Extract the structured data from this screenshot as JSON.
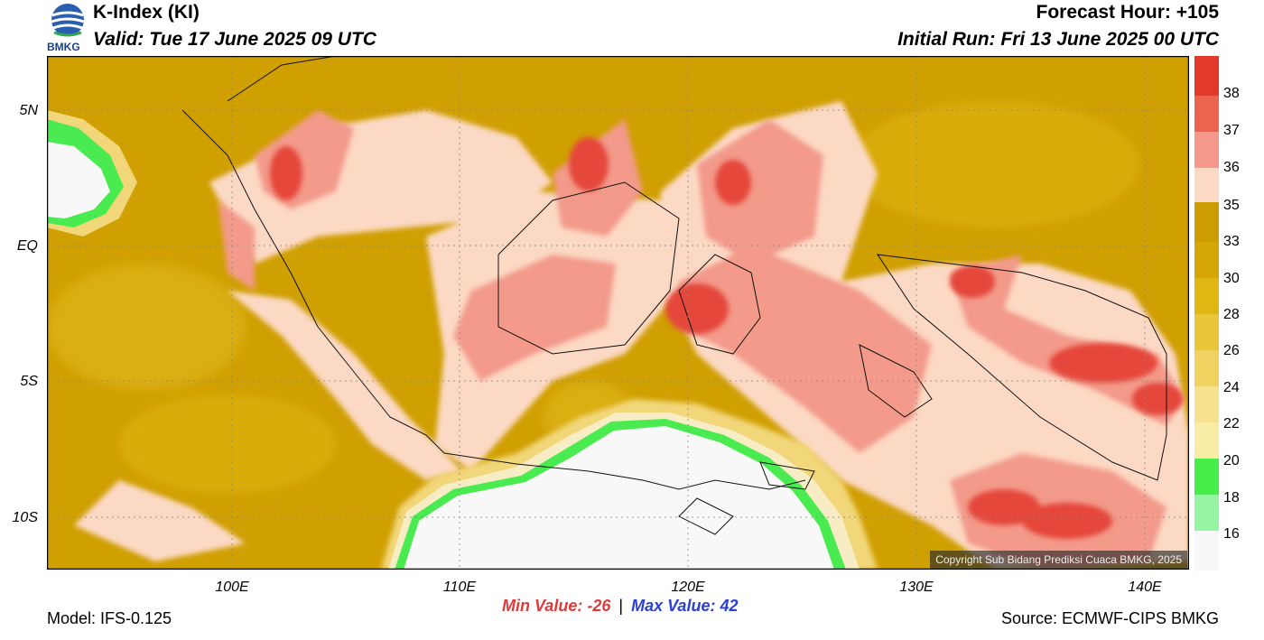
{
  "header": {
    "title": "K-Index (KI)",
    "valid": "Valid: Tue 17 June 2025 09 UTC",
    "forecast_hour": "Forecast Hour: +105",
    "initial_run": "Initial Run: Fri 13 June 2025 00 UTC",
    "logo_text": "BMKG"
  },
  "axes": {
    "lat_labels": [
      "5N",
      "EQ",
      "5S",
      "10S"
    ],
    "lon_labels": [
      "100E",
      "110E",
      "120E",
      "130E",
      "140E"
    ]
  },
  "colorbar": {
    "labels": [
      "38",
      "37",
      "36",
      "35",
      "33",
      "30",
      "28",
      "26",
      "24",
      "22",
      "20",
      "18",
      "16"
    ],
    "colors": [
      "#e3392a",
      "#ec6450",
      "#f5978a",
      "#fcd9c4",
      "#cc9c00",
      "#d6a506",
      "#e0b612",
      "#e8c637",
      "#efd25f",
      "#f6e18e",
      "#f9eda6",
      "#47ed4b",
      "#95f5a2",
      "#f8f8f8"
    ]
  },
  "map": {
    "copyright": "Copyright Sub Bidang Prediksi Cuaca BMKG, 2025"
  },
  "footer": {
    "min_value": "Min Value: -26",
    "separator": "|",
    "max_value": "Max Value:  42",
    "model": "Model: IFS-0.125",
    "source": "Source: ECMWF-CIPS BMKG"
  }
}
